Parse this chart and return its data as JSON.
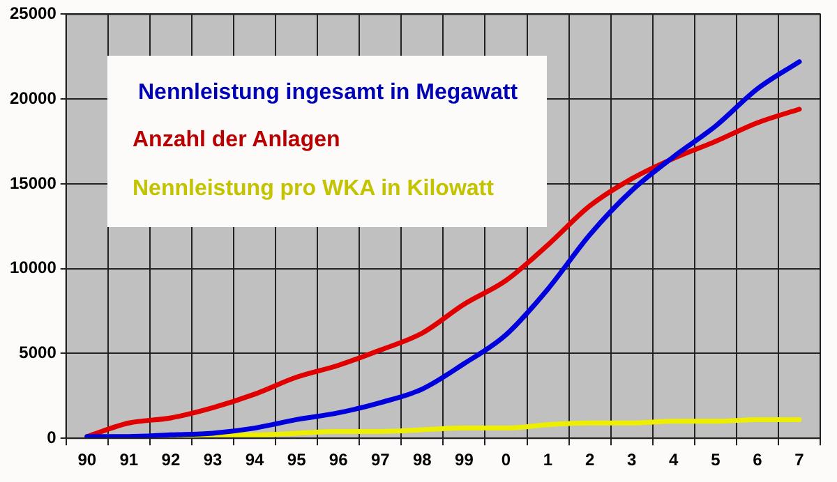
{
  "chart_data": {
    "type": "line",
    "categories": [
      "90",
      "91",
      "92",
      "93",
      "94",
      "95",
      "96",
      "97",
      "98",
      "99",
      "0",
      "1",
      "2",
      "3",
      "4",
      "5",
      "6",
      "7"
    ],
    "series": [
      {
        "name": "Nennleistung ingesamt in Megawatt",
        "color": "#0000dd",
        "values": [
          100,
          100,
          200,
          300,
          600,
          1100,
          1500,
          2100,
          2900,
          4400,
          6100,
          8800,
          12000,
          14600,
          16600,
          18400,
          20600,
          22200
        ]
      },
      {
        "name": "Anzahl der Anlagen",
        "color": "#e00000",
        "values": [
          100,
          900,
          1200,
          1800,
          2600,
          3600,
          4300,
          5200,
          6200,
          7900,
          9300,
          11400,
          13700,
          15300,
          16500,
          17500,
          18600,
          19400
        ]
      },
      {
        "name": "Nennleistung pro WKA in Kilowatt",
        "color": "#eeee00",
        "values": [
          100,
          100,
          100,
          200,
          200,
          300,
          400,
          400,
          500,
          600,
          600,
          800,
          900,
          900,
          1000,
          1000,
          1100,
          1100
        ]
      }
    ],
    "ylim": [
      0,
      25000
    ],
    "yticks": [
      0,
      5000,
      10000,
      15000,
      20000,
      25000
    ],
    "grid": true,
    "legend": "top left",
    "marker": "none",
    "line_style": "solid"
  }
}
